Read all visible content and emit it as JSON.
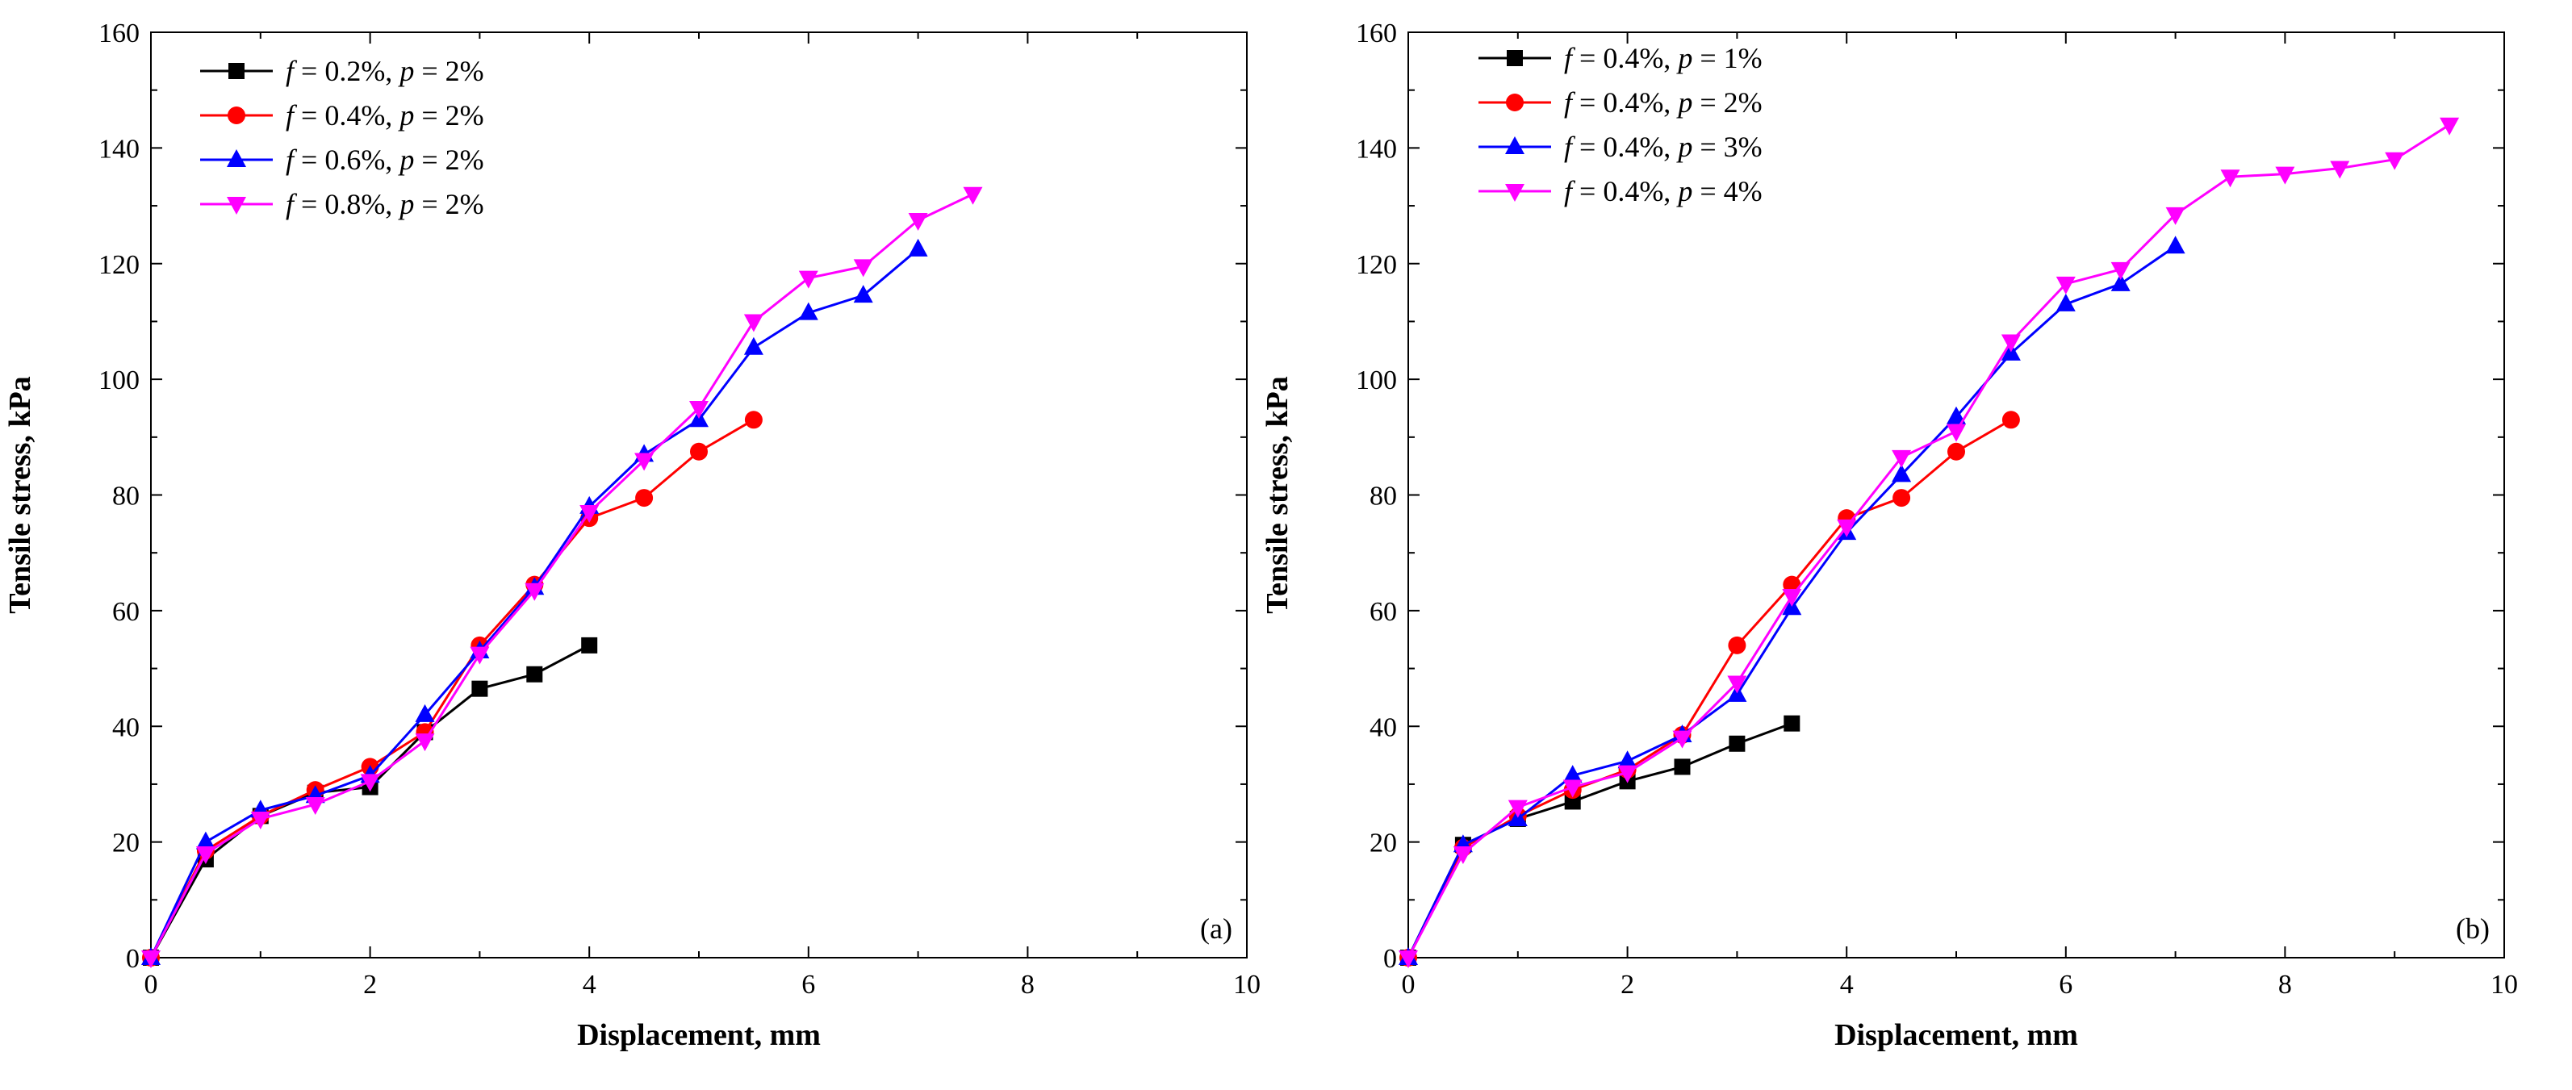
{
  "chart_data": [
    {
      "type": "line",
      "panel_label": "(a)",
      "xlabel": "Displacement, mm",
      "ylabel": "Tensile stress, kPa",
      "xlim": [
        0,
        10
      ],
      "ylim": [
        0,
        160
      ],
      "xticks": [
        "0",
        "2",
        "4",
        "6",
        "8",
        "10"
      ],
      "yticks": [
        "0",
        "20",
        "40",
        "60",
        "80",
        "100",
        "120",
        "140",
        "160"
      ],
      "legend_position": "top-left",
      "series": [
        {
          "name": "f = 0.2%, p = 2%",
          "legend": {
            "f_sym": "f",
            "f_val": "= 0.2%,",
            "p_sym": "p",
            "p_val": "= 2%"
          },
          "color": "#000000",
          "marker": "square",
          "x": [
            0,
            0.5,
            1,
            1.5,
            2,
            2.5,
            3,
            3.5,
            4
          ],
          "y": [
            0,
            17,
            24.5,
            28.5,
            29.5,
            39,
            46.5,
            49,
            54
          ]
        },
        {
          "name": "f = 0.4%, p = 2%",
          "legend": {
            "f_sym": "f",
            "f_val": "= 0.4%,",
            "p_sym": "p",
            "p_val": "= 2%"
          },
          "color": "#ff0000",
          "marker": "circle",
          "x": [
            0,
            0.5,
            1,
            1.5,
            2,
            2.5,
            3,
            3.5,
            4,
            4.5,
            5,
            5.5
          ],
          "y": [
            0,
            18.5,
            24.5,
            29,
            33,
            39,
            54,
            64.5,
            76,
            79.5,
            87.5,
            93
          ]
        },
        {
          "name": "f = 0.6%, p = 2%",
          "legend": {
            "f_sym": "f",
            "f_val": "= 0.6%,",
            "p_sym": "p",
            "p_val": "= 2%"
          },
          "color": "#0000ff",
          "marker": "triangle-up",
          "x": [
            0,
            0.5,
            1,
            1.5,
            2,
            2.5,
            3,
            3.5,
            4,
            4.5,
            5,
            5.5,
            6,
            6.5,
            7
          ],
          "y": [
            0,
            20,
            25.5,
            28,
            31.5,
            42,
            53,
            64,
            78,
            87,
            93,
            105.5,
            111.5,
            114.5,
            122.5
          ]
        },
        {
          "name": "f = 0.8%, p = 2%",
          "legend": {
            "f_sym": "f",
            "f_val": "= 0.8%,",
            "p_sym": "p",
            "p_val": "= 2%"
          },
          "color": "#ff00ff",
          "marker": "triangle-down",
          "x": [
            0,
            0.5,
            1,
            1.5,
            2,
            2.5,
            3,
            3.5,
            4,
            4.5,
            5,
            5.5,
            6,
            6.5,
            7,
            7.5
          ],
          "y": [
            0,
            18,
            24,
            26.5,
            30.5,
            37.5,
            52.5,
            63.5,
            77,
            86,
            95,
            110,
            117.5,
            119.5,
            127.5,
            132
          ]
        }
      ]
    },
    {
      "type": "line",
      "panel_label": "(b)",
      "xlabel": "Displacement, mm",
      "ylabel": "Tensile stress, kPa",
      "xlim": [
        0,
        10
      ],
      "ylim": [
        0,
        160
      ],
      "xticks": [
        "0",
        "2",
        "4",
        "6",
        "8",
        "10"
      ],
      "yticks": [
        "0",
        "20",
        "40",
        "60",
        "80",
        "100",
        "120",
        "140",
        "160"
      ],
      "legend_position": "top-left",
      "series": [
        {
          "name": "f = 0.4%, p = 1%",
          "legend": {
            "f_sym": "f",
            "f_val": "= 0.4%,",
            "p_sym": "p",
            "p_val": "= 1%"
          },
          "color": "#000000",
          "marker": "square",
          "x": [
            0,
            0.5,
            1,
            1.5,
            2,
            2.5,
            3,
            3.5
          ],
          "y": [
            0,
            19.5,
            24,
            27,
            30.5,
            33,
            37,
            40.5
          ]
        },
        {
          "name": "f = 0.4%, p = 2%",
          "legend": {
            "f_sym": "f",
            "f_val": "= 0.4%,",
            "p_sym": "p",
            "p_val": "= 2%"
          },
          "color": "#ff0000",
          "marker": "circle",
          "x": [
            0,
            0.5,
            1,
            1.5,
            2,
            2.5,
            3,
            3.5,
            4,
            4.5,
            5,
            5.5
          ],
          "y": [
            0,
            19,
            24.5,
            29,
            32.5,
            38.5,
            54,
            64.5,
            76,
            79.5,
            87.5,
            93
          ]
        },
        {
          "name": "f = 0.4%, p = 3%",
          "legend": {
            "f_sym": "f",
            "f_val": "= 0.4%,",
            "p_sym": "p",
            "p_val": "= 3%"
          },
          "color": "#0000ff",
          "marker": "triangle-up",
          "x": [
            0,
            0.5,
            1,
            1.5,
            2,
            2.5,
            3,
            3.5,
            4,
            4.5,
            5,
            5.5,
            6,
            6.5,
            7
          ],
          "y": [
            0,
            19.5,
            24,
            31.5,
            34,
            38.5,
            45.5,
            60.5,
            73.5,
            83.5,
            93.5,
            104.5,
            113,
            116.5,
            123
          ]
        },
        {
          "name": "f = 0.4%, p = 4%",
          "legend": {
            "f_sym": "f",
            "f_val": "= 0.4%,",
            "p_sym": "p",
            "p_val": "= 4%"
          },
          "color": "#ff00ff",
          "marker": "triangle-down",
          "x": [
            0,
            0.5,
            1,
            1.5,
            2,
            2.5,
            3,
            3.5,
            4,
            4.5,
            5,
            5.5,
            6,
            6.5,
            7,
            7.5,
            8,
            8.5,
            9,
            9.5
          ],
          "y": [
            0,
            18,
            26,
            29.5,
            32,
            38,
            47.5,
            62.5,
            74.5,
            86.5,
            91,
            106.5,
            116.5,
            119,
            128.5,
            135,
            135.5,
            136.5,
            138,
            144
          ]
        }
      ]
    }
  ]
}
